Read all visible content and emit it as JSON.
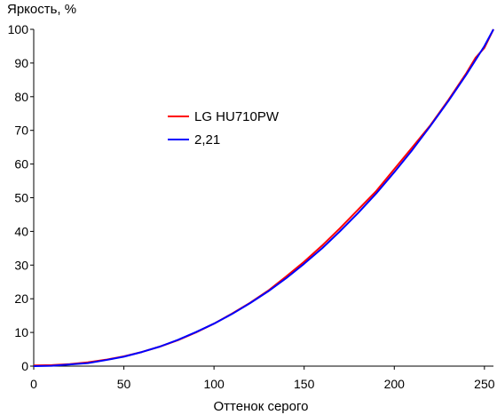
{
  "chart_data": {
    "type": "line",
    "title": "",
    "ylabel": "Яркость, %",
    "xlabel": "Оттенок серого",
    "xlim": [
      0,
      255
    ],
    "ylim": [
      0,
      100
    ],
    "x_ticks": [
      0,
      50,
      100,
      150,
      200,
      250
    ],
    "y_ticks": [
      0,
      10,
      20,
      30,
      40,
      50,
      60,
      70,
      80,
      90,
      100
    ],
    "grid": false,
    "legend_position": "center-left",
    "series": [
      {
        "name": "LG HU710PW",
        "color": "#ff0000",
        "x": [
          0,
          10,
          20,
          30,
          40,
          50,
          60,
          70,
          80,
          90,
          100,
          110,
          120,
          130,
          140,
          150,
          160,
          170,
          180,
          190,
          200,
          210,
          220,
          230,
          240,
          245,
          250,
          255
        ],
        "y": [
          0.2,
          0.3,
          0.6,
          1.1,
          1.9,
          2.9,
          4.2,
          5.8,
          7.7,
          10.0,
          12.6,
          15.6,
          18.8,
          22.4,
          26.6,
          31.0,
          35.8,
          41.0,
          46.5,
          52.0,
          58.5,
          65.0,
          71.5,
          79.0,
          87.0,
          91.5,
          94.5,
          100.0
        ]
      },
      {
        "name": "2,21",
        "color": "#0000ff",
        "x": [
          0,
          10,
          20,
          30,
          40,
          50,
          60,
          70,
          80,
          90,
          100,
          110,
          120,
          130,
          140,
          150,
          160,
          170,
          180,
          190,
          200,
          210,
          220,
          230,
          240,
          250,
          255
        ],
        "y": [
          0.0,
          0.1,
          0.5,
          0.9,
          1.8,
          2.8,
          4.2,
          5.8,
          7.8,
          10.1,
          12.6,
          15.5,
          18.7,
          22.2,
          26.1,
          30.4,
          35.0,
          40.1,
          45.5,
          51.3,
          57.6,
          64.2,
          71.3,
          78.7,
          86.6,
          95.0,
          100.0
        ]
      }
    ]
  }
}
